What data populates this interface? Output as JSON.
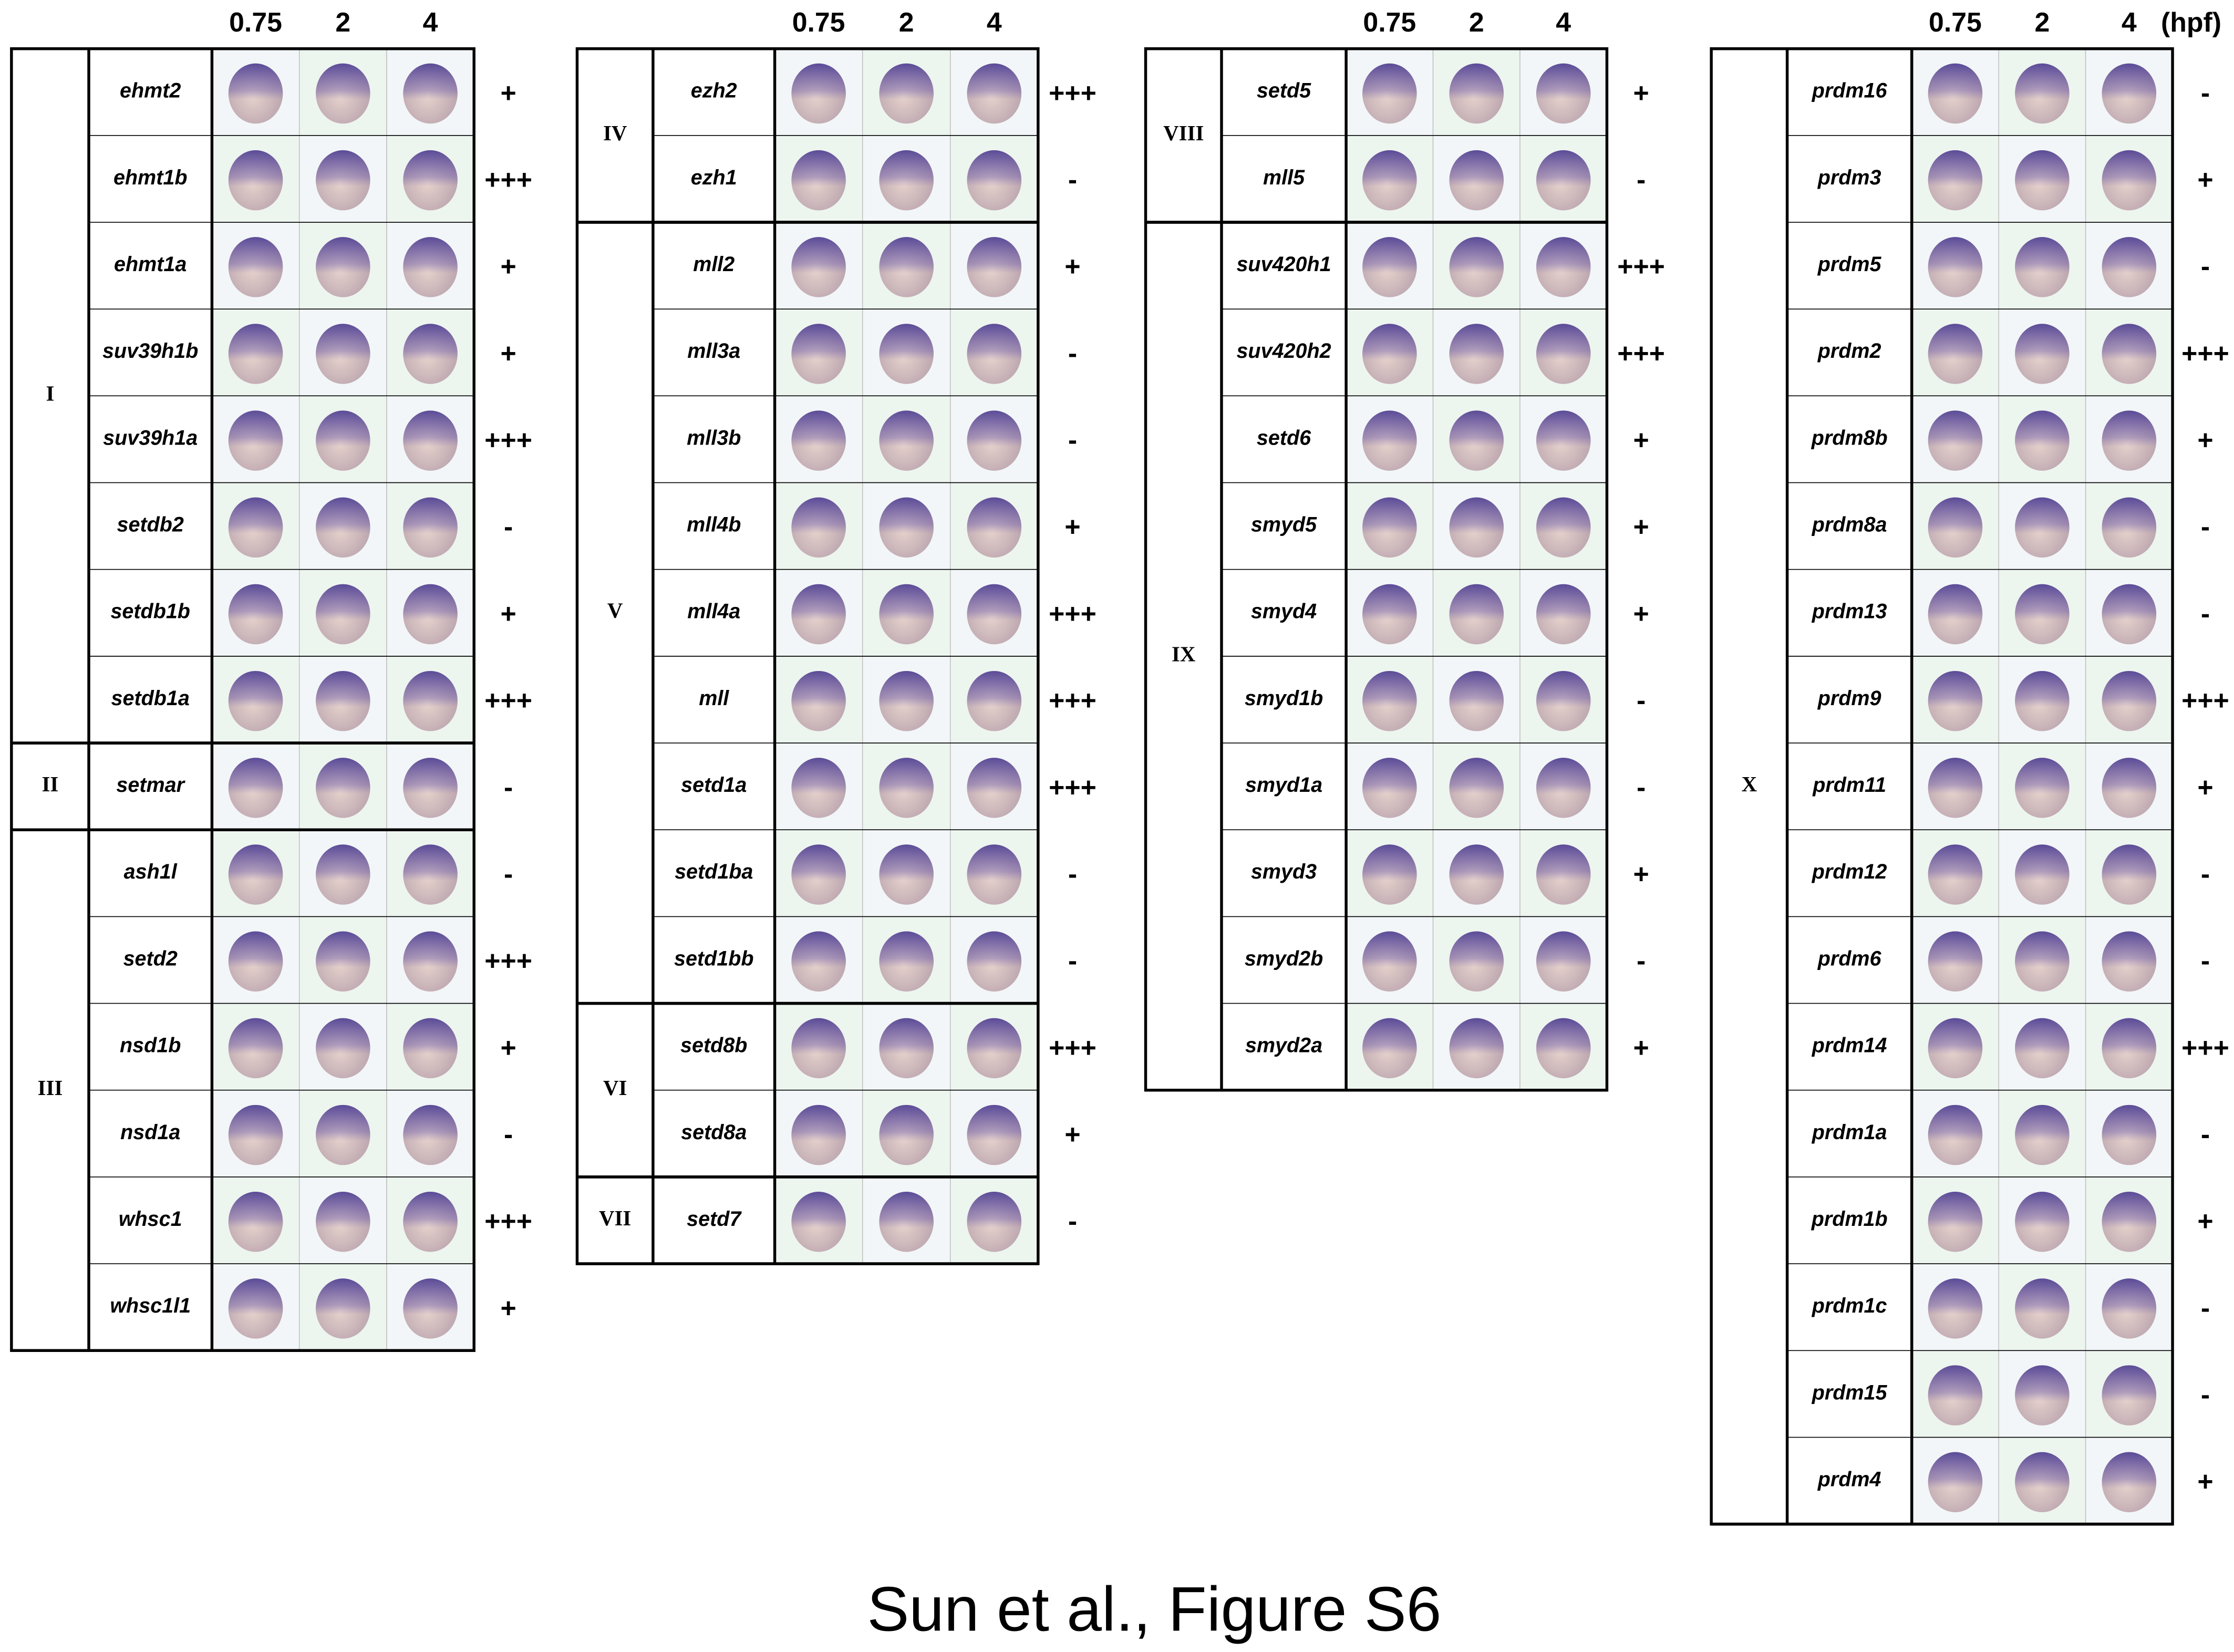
{
  "panels": [
    {
      "stages": [
        "0.75",
        "2",
        "4"
      ],
      "groups": [
        {
          "label": "I",
          "genes": [
            {
              "name": "ehmt2",
              "score": "+"
            },
            {
              "name": "ehmt1b",
              "score": "+++"
            },
            {
              "name": "ehmt1a",
              "score": "+"
            },
            {
              "name": "suv39h1b",
              "score": "+"
            },
            {
              "name": "suv39h1a",
              "score": "+++"
            },
            {
              "name": "setdb2",
              "score": "-"
            },
            {
              "name": "setdb1b",
              "score": "+"
            },
            {
              "name": "setdb1a",
              "score": "+++"
            }
          ]
        },
        {
          "label": "II",
          "genes": [
            {
              "name": "setmar",
              "score": "-"
            }
          ]
        },
        {
          "label": "III",
          "genes": [
            {
              "name": "ash1l",
              "score": "-"
            },
            {
              "name": "setd2",
              "score": "+++"
            },
            {
              "name": "nsd1b",
              "score": "+"
            },
            {
              "name": "nsd1a",
              "score": "-"
            },
            {
              "name": "whsc1",
              "score": "+++"
            },
            {
              "name": "whsc1l1",
              "score": "+"
            }
          ]
        }
      ]
    },
    {
      "stages": [
        "0.75",
        "2",
        "4"
      ],
      "groups": [
        {
          "label": "IV",
          "genes": [
            {
              "name": "ezh2",
              "score": "+++"
            },
            {
              "name": "ezh1",
              "score": "-"
            }
          ]
        },
        {
          "label": "V",
          "genes": [
            {
              "name": "mll2",
              "score": "+"
            },
            {
              "name": "mll3a",
              "score": "-"
            },
            {
              "name": "mll3b",
              "score": "-"
            },
            {
              "name": "mll4b",
              "score": "+"
            },
            {
              "name": "mll4a",
              "score": "+++"
            },
            {
              "name": "mll",
              "score": "+++"
            },
            {
              "name": "setd1a",
              "score": "+++"
            },
            {
              "name": "setd1ba",
              "score": "-"
            },
            {
              "name": "setd1bb",
              "score": "-"
            }
          ]
        },
        {
          "label": "VI",
          "genes": [
            {
              "name": "setd8b",
              "score": "+++"
            },
            {
              "name": "setd8a",
              "score": "+"
            }
          ]
        },
        {
          "label": "VII",
          "genes": [
            {
              "name": "setd7",
              "score": "-"
            }
          ]
        }
      ]
    },
    {
      "stages": [
        "0.75",
        "2",
        "4"
      ],
      "groups": [
        {
          "label": "VIII",
          "genes": [
            {
              "name": "setd5",
              "score": "+"
            },
            {
              "name": "mll5",
              "score": "-"
            }
          ]
        },
        {
          "label": "IX",
          "genes": [
            {
              "name": "suv420h1",
              "score": "+++"
            },
            {
              "name": "suv420h2",
              "score": "+++"
            },
            {
              "name": "setd6",
              "score": "+"
            },
            {
              "name": "smyd5",
              "score": "+"
            },
            {
              "name": "smyd4",
              "score": "+"
            },
            {
              "name": "smyd1b",
              "score": "-"
            },
            {
              "name": "smyd1a",
              "score": "-"
            },
            {
              "name": "smyd3",
              "score": "+"
            },
            {
              "name": "smyd2b",
              "score": "-"
            },
            {
              "name": "smyd2a",
              "score": "+"
            }
          ]
        }
      ]
    },
    {
      "stages": [
        "0.75",
        "2",
        "4"
      ],
      "unit": "(hpf)",
      "groups": [
        {
          "label": "X",
          "genes": [
            {
              "name": "prdm16",
              "score": "-"
            },
            {
              "name": "prdm3",
              "score": "+"
            },
            {
              "name": "prdm5",
              "score": "-"
            },
            {
              "name": "prdm2",
              "score": "+++"
            },
            {
              "name": "prdm8b",
              "score": "+"
            },
            {
              "name": "prdm8a",
              "score": "-"
            },
            {
              "name": "prdm13",
              "score": "-"
            },
            {
              "name": "prdm9",
              "score": "+++"
            },
            {
              "name": "prdm11",
              "score": "+"
            },
            {
              "name": "prdm12",
              "score": "-"
            },
            {
              "name": "prdm6",
              "score": "-"
            },
            {
              "name": "prdm14",
              "score": "+++"
            },
            {
              "name": "prdm1a",
              "score": "-"
            },
            {
              "name": "prdm1b",
              "score": "+"
            },
            {
              "name": "prdm1c",
              "score": "-"
            },
            {
              "name": "prdm15",
              "score": "-"
            },
            {
              "name": "prdm4",
              "score": "+"
            }
          ]
        }
      ]
    }
  ],
  "caption": "Sun et al., Figure S6"
}
